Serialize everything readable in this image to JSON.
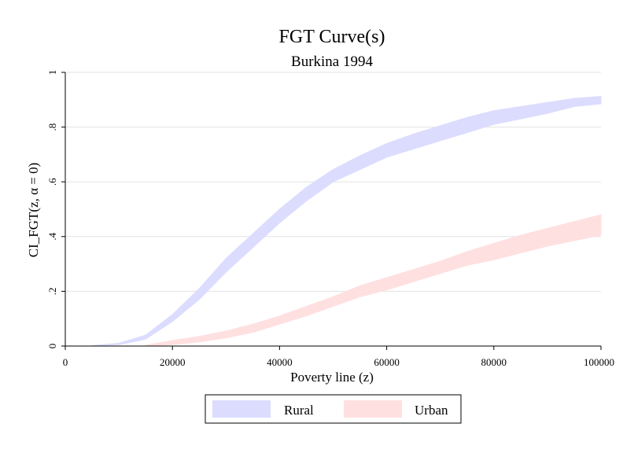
{
  "chart_data": {
    "type": "area",
    "title": "FGT Curve(s)",
    "subtitle": "Burkina 1994",
    "xlabel": "Poverty line (z)",
    "ylabel": "CI_FGT(z, α = 0)",
    "xlim": [
      0,
      100000
    ],
    "ylim": [
      0,
      1
    ],
    "xticks": [
      0,
      20000,
      40000,
      60000,
      80000,
      100000
    ],
    "xtick_labels": [
      "0",
      "20000",
      "40000",
      "60000",
      "80000",
      "100000"
    ],
    "yticks": [
      0,
      0.2,
      0.4,
      0.6,
      0.8,
      1
    ],
    "ytick_labels": [
      "0",
      ".2",
      ".4",
      ".6",
      ".8",
      "1"
    ],
    "grid": "horizontal",
    "legend_position": "bottom",
    "series": [
      {
        "name": "Rural",
        "color": "#dcdcff",
        "x": [
          5000,
          10000,
          15000,
          20000,
          25000,
          30000,
          35000,
          40000,
          45000,
          50000,
          55000,
          60000,
          65000,
          70000,
          75000,
          80000,
          85000,
          90000,
          95000,
          100000
        ],
        "lower": [
          0,
          0.005,
          0.025,
          0.09,
          0.17,
          0.27,
          0.36,
          0.45,
          0.53,
          0.6,
          0.645,
          0.69,
          0.72,
          0.75,
          0.78,
          0.81,
          0.83,
          0.85,
          0.875,
          0.885
        ],
        "upper": [
          0.002,
          0.01,
          0.04,
          0.115,
          0.21,
          0.32,
          0.41,
          0.5,
          0.58,
          0.645,
          0.695,
          0.74,
          0.775,
          0.805,
          0.835,
          0.86,
          0.875,
          0.89,
          0.905,
          0.912
        ]
      },
      {
        "name": "Urban",
        "color": "#ffe0e0",
        "x": [
          15000,
          20000,
          25000,
          30000,
          35000,
          40000,
          45000,
          50000,
          55000,
          60000,
          65000,
          70000,
          75000,
          80000,
          85000,
          90000,
          95000,
          100000
        ],
        "lower": [
          0,
          0.005,
          0.015,
          0.03,
          0.05,
          0.08,
          0.11,
          0.145,
          0.18,
          0.205,
          0.235,
          0.265,
          0.295,
          0.315,
          0.34,
          0.365,
          0.385,
          0.405
        ],
        "upper": [
          0.003,
          0.02,
          0.035,
          0.055,
          0.08,
          0.11,
          0.145,
          0.18,
          0.22,
          0.25,
          0.28,
          0.31,
          0.345,
          0.375,
          0.405,
          0.43,
          0.455,
          0.48
        ]
      }
    ]
  }
}
